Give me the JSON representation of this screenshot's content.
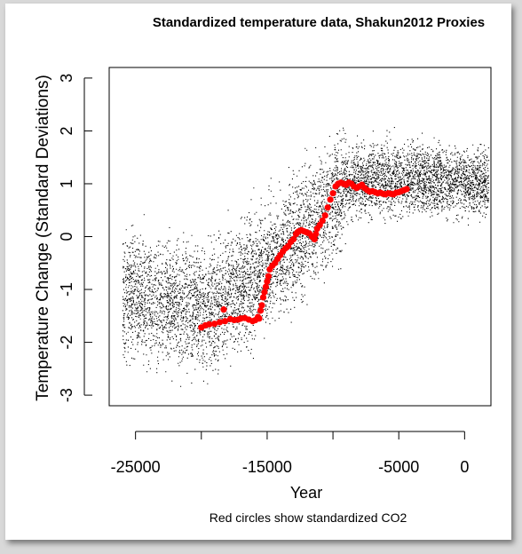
{
  "chart_data": {
    "type": "scatter",
    "title": "Standardized temperature data, Shakun2012 Proxies",
    "xlabel": "Year",
    "ylabel": "Temperature Change (Standard Deviations)",
    "note": "Red circles show standardized CO2",
    "xlim": [
      -27000,
      2000
    ],
    "ylim": [
      -3.2,
      3.2
    ],
    "xticks": [
      -25000,
      -20000,
      -15000,
      -10000,
      -5000,
      0
    ],
    "xtick_labels": [
      "-25000",
      "",
      "-15000",
      "",
      "-5000",
      "0"
    ],
    "yticks": [
      -3,
      -2,
      -1,
      0,
      1,
      2,
      3
    ],
    "ytick_labels": [
      "-3",
      "-2",
      "-1",
      "0",
      "1",
      "2",
      "3"
    ],
    "grid": false,
    "colors": {
      "proxies": "#000000",
      "co2": "#ff0000"
    },
    "series": [
      {
        "description_visible": false,
        "kind": "proxy-cloud",
        "trend_x": [
          -26000,
          -22000,
          -20000,
          -19000,
          -17000,
          -15000,
          -13000,
          -11500,
          -10000,
          -9000,
          -7000,
          -5000,
          -3000,
          0,
          2000
        ],
        "trend_y": [
          -1.1,
          -1.3,
          -1.35,
          -1.3,
          -0.9,
          -0.5,
          -0.1,
          0.3,
          0.7,
          1.0,
          1.1,
          1.1,
          1.1,
          1.05,
          1.0
        ]
      },
      {
        "kind": "co2-points",
        "points": [
          [
            -20000,
            -1.72
          ],
          [
            -19700,
            -1.68
          ],
          [
            -19400,
            -1.66
          ],
          [
            -19000,
            -1.65
          ],
          [
            -18600,
            -1.62
          ],
          [
            -18200,
            -1.6
          ],
          [
            -17800,
            -1.56
          ],
          [
            -17500,
            -1.58
          ],
          [
            -17200,
            -1.57
          ],
          [
            -17000,
            -1.55
          ],
          [
            -16700,
            -1.54
          ],
          [
            -16400,
            -1.57
          ],
          [
            -16100,
            -1.6
          ],
          [
            -15900,
            -1.58
          ],
          [
            -15700,
            -1.52
          ],
          [
            -15500,
            -1.4
          ],
          [
            -15400,
            -1.3
          ],
          [
            -15300,
            -1.15
          ],
          [
            -15200,
            -1.05
          ],
          [
            -15100,
            -0.95
          ],
          [
            -15000,
            -0.85
          ],
          [
            -14900,
            -0.75
          ],
          [
            -14800,
            -0.62
          ],
          [
            -14600,
            -0.55
          ],
          [
            -14400,
            -0.5
          ],
          [
            -14200,
            -0.42
          ],
          [
            -14000,
            -0.35
          ],
          [
            -13800,
            -0.28
          ],
          [
            -13600,
            -0.22
          ],
          [
            -13400,
            -0.18
          ],
          [
            -13200,
            -0.1
          ],
          [
            -13000,
            -0.05
          ],
          [
            -12800,
            0.05
          ],
          [
            -12600,
            0.1
          ],
          [
            -12400,
            0.12
          ],
          [
            -12200,
            0.1
          ],
          [
            -12000,
            0.08
          ],
          [
            -11800,
            0.06
          ],
          [
            -11600,
            0.0
          ],
          [
            -11400,
            -0.05
          ],
          [
            -11300,
            0.05
          ],
          [
            -11200,
            0.15
          ],
          [
            -11000,
            0.22
          ],
          [
            -10800,
            0.3
          ],
          [
            -10600,
            0.4
          ],
          [
            -10400,
            0.55
          ],
          [
            -10200,
            0.7
          ],
          [
            -10000,
            0.82
          ],
          [
            -9800,
            0.95
          ],
          [
            -9600,
            1.0
          ],
          [
            -9400,
            1.02
          ],
          [
            -9200,
            1.0
          ],
          [
            -9000,
            0.98
          ],
          [
            -8800,
            1.02
          ],
          [
            -8600,
            1.0
          ],
          [
            -8400,
            0.95
          ],
          [
            -8200,
            0.92
          ],
          [
            -8000,
            0.95
          ],
          [
            -7800,
            0.98
          ],
          [
            -7600,
            0.92
          ],
          [
            -7400,
            0.88
          ],
          [
            -7200,
            0.85
          ],
          [
            -7000,
            0.86
          ],
          [
            -6800,
            0.84
          ],
          [
            -6600,
            0.82
          ],
          [
            -6400,
            0.83
          ],
          [
            -6200,
            0.81
          ],
          [
            -6000,
            0.8
          ],
          [
            -5800,
            0.82
          ],
          [
            -5600,
            0.81
          ],
          [
            -5400,
            0.8
          ],
          [
            -5200,
            0.83
          ],
          [
            -5000,
            0.84
          ],
          [
            -4800,
            0.86
          ],
          [
            -4600,
            0.88
          ],
          [
            -4400,
            0.9
          ],
          [
            -18300,
            -1.38
          ],
          [
            -15600,
            -1.55
          ],
          [
            -12700,
            0.08
          ]
        ]
      }
    ]
  }
}
